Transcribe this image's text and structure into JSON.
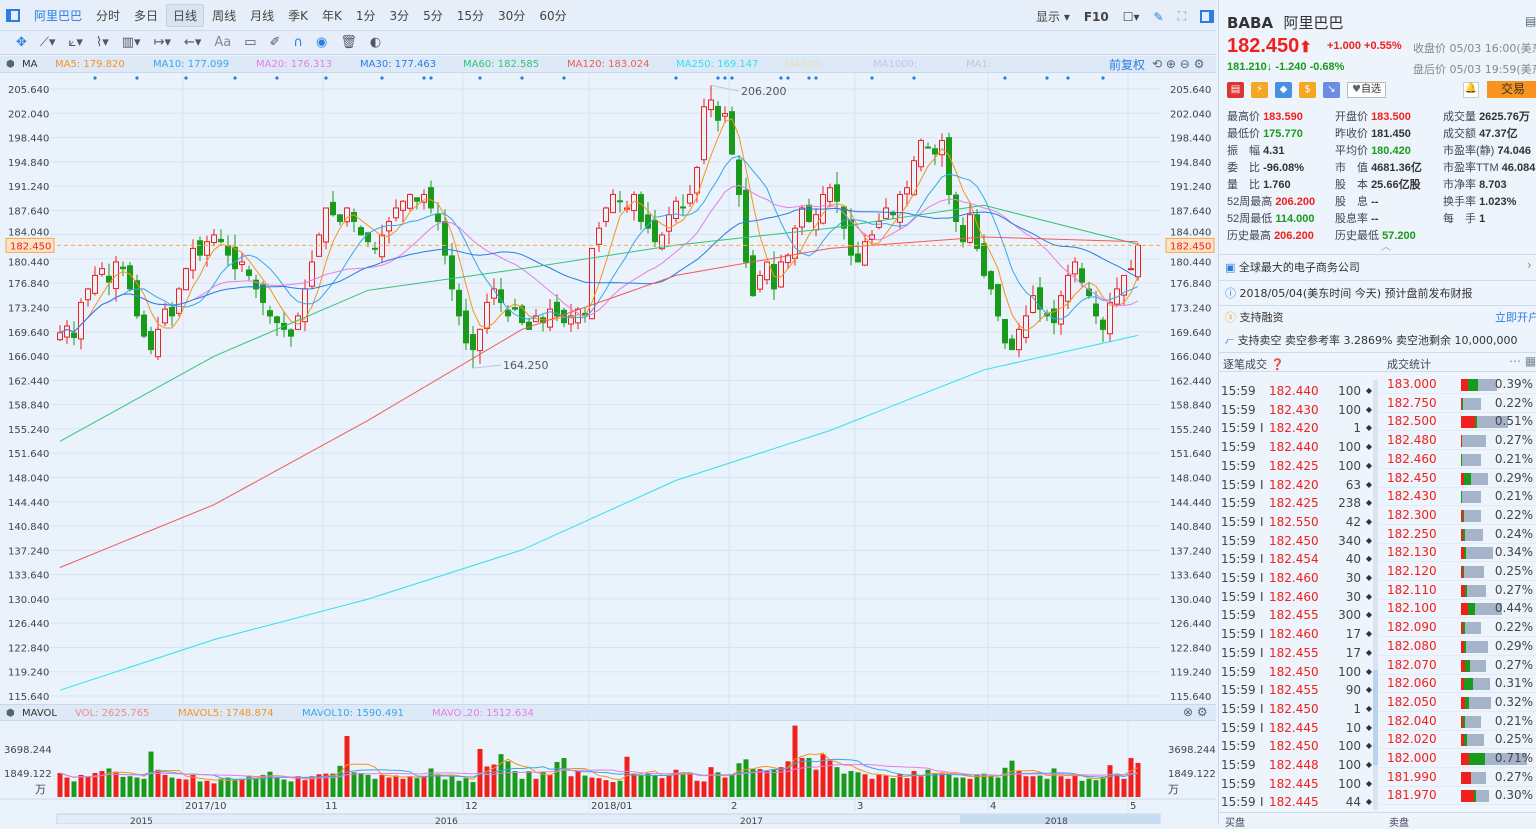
{
  "toolbar": {
    "tabs": [
      "阿里巴巴",
      "分时",
      "多日",
      "日线",
      "周线",
      "月线",
      "季K",
      "年K",
      "1分",
      "3分",
      "5分",
      "15分",
      "30分",
      "60分"
    ],
    "selected_tab": "日线",
    "display_label": "显示",
    "f10_label": "F10",
    "text_tool": "Aa"
  },
  "ma_legend": {
    "label": "MA",
    "items": [
      {
        "text": "MA5: 179.820",
        "color": "#f7931e"
      },
      {
        "text": "MA10: 177.099",
        "color": "#35a9e8"
      },
      {
        "text": "MA20: 176.313",
        "color": "#e77ee0"
      },
      {
        "text": "MA30: 177.463",
        "color": "#2a7de1"
      },
      {
        "text": "MA60: 182.585",
        "color": "#35c27a"
      },
      {
        "text": "MA120: 183.024",
        "color": "#f35a5a"
      },
      {
        "text": "MA250: 169.147",
        "color": "#2de3ee"
      },
      {
        "text": "MA500:",
        "color": "#e5e0b0"
      },
      {
        "text": "MA1000:",
        "color": "#c8c0ee"
      },
      {
        "text": "MA1:",
        "color": "#c0c8d4"
      }
    ],
    "adjust_label": "前复权"
  },
  "vol_legend": {
    "label": "MAVOL",
    "items": [
      {
        "text": "VOL: 2625.765",
        "color": "#f38a8a"
      },
      {
        "text": "MAVOL5: 1748.874",
        "color": "#f7931e"
      },
      {
        "text": "MAVOL10: 1590.491",
        "color": "#35a9e8"
      },
      {
        "text": "MAVOL20: 1512.634",
        "color": "#e77ee0"
      }
    ]
  },
  "chart_data": {
    "type": "candlestick",
    "y_ticks": [
      "205.640",
      "202.040",
      "198.440",
      "194.840",
      "191.240",
      "187.640",
      "184.040",
      "180.440",
      "176.840",
      "173.240",
      "169.640",
      "166.040",
      "162.440",
      "158.840",
      "155.240",
      "151.640",
      "148.040",
      "144.440",
      "140.840",
      "137.240",
      "133.640",
      "130.040",
      "126.440",
      "122.840",
      "119.240",
      "115.640"
    ],
    "ylim": [
      115.64,
      205.64
    ],
    "current_price": "182.450",
    "annotations": [
      {
        "text": "206.200",
        "value": 206.2,
        "index": 93
      },
      {
        "text": "164.250",
        "value": 164.25,
        "index": 59
      }
    ],
    "month_labels": [
      {
        "text": "2017/10",
        "index": 18
      },
      {
        "text": "11",
        "index": 38
      },
      {
        "text": "12",
        "index": 58
      },
      {
        "text": "2018/01",
        "index": 76
      },
      {
        "text": "2",
        "index": 96
      },
      {
        "text": "3",
        "index": 114
      },
      {
        "text": "4",
        "index": 133
      },
      {
        "text": "5",
        "index": 153
      }
    ],
    "navigator_years": [
      "2015",
      "2016",
      "2017",
      "2018"
    ],
    "vol_ticks": [
      "3698.244",
      "1849.122"
    ],
    "vol_unit": "万",
    "up_color": "#f0201c",
    "down_color": "#1a9a1a",
    "closes": [
      169.5,
      170.5,
      168.8,
      174,
      176,
      178,
      179,
      177,
      180,
      179,
      176,
      172,
      169,
      167,
      170,
      173,
      172,
      176,
      179,
      182,
      181,
      183,
      184,
      183,
      181,
      179,
      180,
      178,
      176,
      174,
      172,
      171,
      170,
      169,
      172,
      176,
      180,
      184,
      188,
      187,
      186,
      188,
      186,
      184,
      183,
      182,
      184,
      186,
      188,
      189,
      190,
      189,
      190,
      188,
      186,
      181,
      176,
      172,
      168,
      167,
      170,
      174,
      176,
      174,
      172,
      173,
      171,
      170,
      172,
      171,
      173,
      172,
      171,
      172,
      173,
      172,
      182,
      185,
      188,
      190,
      189,
      188,
      190,
      186,
      185,
      183,
      184,
      187,
      189,
      188,
      190,
      194,
      203,
      204,
      201,
      202,
      196,
      190,
      180,
      175,
      178,
      180,
      176,
      180,
      181,
      185,
      188,
      186,
      187,
      190,
      191,
      189,
      185,
      181,
      180,
      183,
      184,
      186,
      188,
      187,
      190,
      191,
      195,
      198,
      197,
      196,
      198,
      190,
      186,
      183,
      187,
      182,
      178,
      176,
      172,
      168,
      167,
      170,
      172,
      175,
      173,
      172,
      171,
      175,
      178,
      180,
      177,
      175,
      172,
      170,
      174,
      176,
      178,
      179,
      182.45
    ],
    "volumes": [
      1850,
      1500,
      1200,
      1700,
      1550,
      1850,
      2000,
      2200,
      1950,
      1550,
      1600,
      1500,
      1400,
      3500,
      2100,
      1700,
      1500,
      1400,
      1350,
      1700,
      1200,
      1250,
      1050,
      1400,
      1500,
      1350,
      1400,
      1650,
      1450,
      1700,
      1950,
      1500,
      1350,
      1200,
      1600,
      1300,
      1600,
      1750,
      1800,
      1800,
      2400,
      4700,
      1900,
      1850,
      1700,
      1400,
      1700,
      1500,
      1650,
      1400,
      1600,
      1450,
      1600,
      2200,
      1750,
      1350,
      1600,
      1250,
      1450,
      1150,
      3700,
      2350,
      2500,
      3300,
      2750,
      2000,
      1400,
      2000,
      1400,
      1950,
      1700,
      2700,
      3000,
      1600,
      2000,
      1650,
      1500,
      1450,
      1300,
      1150,
      1250,
      3100,
      1800,
      1650,
      1800,
      1650,
      1450,
      1700,
      2100,
      1900,
      1750,
      1250,
      1200,
      2300,
      1900,
      1500,
      1700,
      2600,
      2900,
      2150,
      2150,
      2000,
      2100,
      2300,
      2750,
      5500,
      3000,
      3000,
      2100,
      3300,
      2800,
      2300,
      1800,
      2000,
      1900,
      1750,
      1400,
      1700,
      1650,
      1450,
      1750,
      1450,
      2000,
      1600,
      2100,
      1850,
      1800,
      1700,
      1500,
      1500,
      1400,
      1750,
      1800,
      1600,
      1500,
      2250,
      2800,
      2000,
      1600,
      1600,
      1650,
      1400,
      2200,
      1600,
      1400,
      1700,
      1250,
      1400,
      1300,
      1500,
      2450,
      1800,
      1400,
      3000,
      2625.765
    ],
    "long_ma": [
      {
        "name": "MA60",
        "color": "#35c27a",
        "every": 22,
        "values": [
          153.4,
          166,
          175.8,
          179,
          182.5,
          185,
          188.4,
          182.6
        ]
      },
      {
        "name": "MA120",
        "color": "#f35a5a",
        "every": 22,
        "values": [
          134.7,
          144,
          156.5,
          170,
          178,
          182,
          183.7,
          183.0
        ]
      },
      {
        "name": "MA250",
        "color": "#2de3ee",
        "every": 22,
        "values": [
          116.5,
          124,
          130,
          137.3,
          147.6,
          155,
          164,
          169.1
        ]
      }
    ]
  },
  "quote": {
    "symbol": "BABA",
    "name": "阿里巴巴",
    "price": "182.450",
    "arrow": "⬆",
    "change": "+1.000",
    "change_pct": "+0.55%",
    "close_time": "收盘价 05/03 16:00(美东",
    "ah_price": "181.210",
    "ah_arrow": "↓",
    "ah_change": "-1.240",
    "ah_pct": "-0.68%",
    "ah_time": "盘后价 05/03 19:59(美东",
    "watch_label": "自选",
    "trade_label": "交易"
  },
  "stats": [
    [
      {
        "k": "最高价",
        "v": "183.590",
        "c": "red"
      },
      {
        "k": "开盘价",
        "v": "183.500",
        "c": "red"
      },
      {
        "k": "成交量",
        "v": "2625.76万",
        "c": ""
      }
    ],
    [
      {
        "k": "最低价",
        "v": "175.770",
        "c": "green"
      },
      {
        "k": "昨收价",
        "v": "181.450",
        "c": ""
      },
      {
        "k": "成交额",
        "v": "47.37亿",
        "c": ""
      }
    ],
    [
      {
        "k": "振　幅",
        "v": "4.31",
        "c": ""
      },
      {
        "k": "平均价",
        "v": "180.420",
        "c": "green"
      },
      {
        "k": "市盈率(静)",
        "v": "74.046",
        "c": ""
      }
    ],
    [
      {
        "k": "委　比",
        "v": "-96.08%",
        "c": ""
      },
      {
        "k": "市　值",
        "v": "4681.36亿",
        "c": ""
      },
      {
        "k": "市盈率TTM",
        "v": "46.084",
        "c": ""
      }
    ],
    [
      {
        "k": "量　比",
        "v": "1.760",
        "c": ""
      },
      {
        "k": "股　本",
        "v": "25.66亿股",
        "c": ""
      },
      {
        "k": "市净率",
        "v": "8.703",
        "c": ""
      }
    ],
    [
      {
        "k": "52周最高",
        "v": "206.200",
        "c": "red"
      },
      {
        "k": "股　息",
        "v": "--",
        "c": ""
      },
      {
        "k": "换手率",
        "v": "1.023%",
        "c": ""
      }
    ],
    [
      {
        "k": "52周最低",
        "v": "114.000",
        "c": "green"
      },
      {
        "k": "股息率",
        "v": "--",
        "c": ""
      },
      {
        "k": "每　手",
        "v": "1",
        "c": ""
      }
    ],
    [
      {
        "k": "历史最高",
        "v": "206.200",
        "c": "red"
      },
      {
        "k": "历史最低",
        "v": "57.200",
        "c": "green"
      }
    ]
  ],
  "info": {
    "company": "全球最大的电子商务公司",
    "earnings": "2018/05/04(美东时间 今天) 预计盘前发布财报",
    "margin": "支持融资",
    "open_account": "立即开户",
    "short": "支持卖空  卖空参考率 3.2869%  卖空池剩余 10,000,000"
  },
  "trades": {
    "title": "逐笔成交",
    "stats_title": "成交统计",
    "footer_left": "买盘",
    "footer_right": "卖盘",
    "rows": [
      [
        "15:59",
        "",
        "182.440",
        "100"
      ],
      [
        "15:59",
        "",
        "182.430",
        "100"
      ],
      [
        "15:59",
        "I",
        "182.420",
        "1"
      ],
      [
        "15:59",
        "",
        "182.440",
        "100"
      ],
      [
        "15:59",
        "",
        "182.425",
        "100"
      ],
      [
        "15:59",
        "I",
        "182.420",
        "63"
      ],
      [
        "15:59",
        "",
        "182.425",
        "238"
      ],
      [
        "15:59",
        "I",
        "182.550",
        "42"
      ],
      [
        "15:59",
        "",
        "182.450",
        "340"
      ],
      [
        "15:59",
        "I",
        "182.454",
        "40"
      ],
      [
        "15:59",
        "I",
        "182.460",
        "30"
      ],
      [
        "15:59",
        "I",
        "182.460",
        "30"
      ],
      [
        "15:59",
        "",
        "182.455",
        "300"
      ],
      [
        "15:59",
        "I",
        "182.460",
        "17"
      ],
      [
        "15:59",
        "I",
        "182.455",
        "17"
      ],
      [
        "15:59",
        "",
        "182.450",
        "100"
      ],
      [
        "15:59",
        "I",
        "182.455",
        "90"
      ],
      [
        "15:59",
        "I",
        "182.450",
        "1"
      ],
      [
        "15:59",
        "I",
        "182.445",
        "10"
      ],
      [
        "15:59",
        "",
        "182.450",
        "100"
      ],
      [
        "15:59",
        "",
        "182.448",
        "100"
      ],
      [
        "15:59",
        "",
        "182.445",
        "100"
      ],
      [
        "15:59",
        "I",
        "182.445",
        "44"
      ]
    ]
  },
  "volume_stats": [
    {
      "price": "183.000",
      "pct": "0.39%",
      "red": 0.18,
      "green": 0.3
    },
    {
      "price": "182.750",
      "pct": "0.22%",
      "red": 0.03,
      "green": 0.08
    },
    {
      "price": "182.500",
      "pct": "0.51%",
      "red": 0.3,
      "green": 0.04
    },
    {
      "price": "182.480",
      "pct": "0.27%",
      "red": 0.03,
      "green": 0
    },
    {
      "price": "182.460",
      "pct": "0.21%",
      "red": 0,
      "green": 0.04
    },
    {
      "price": "182.450",
      "pct": "0.29%",
      "red": 0.12,
      "green": 0.25
    },
    {
      "price": "182.430",
      "pct": "0.21%",
      "red": 0,
      "green": 0.05
    },
    {
      "price": "182.300",
      "pct": "0.22%",
      "red": 0.12,
      "green": 0.04
    },
    {
      "price": "182.250",
      "pct": "0.24%",
      "red": 0.1,
      "green": 0.1
    },
    {
      "price": "182.130",
      "pct": "0.34%",
      "red": 0.08,
      "green": 0.08
    },
    {
      "price": "182.120",
      "pct": "0.25%",
      "red": 0.08,
      "green": 0.06
    },
    {
      "price": "182.110",
      "pct": "0.27%",
      "red": 0.15,
      "green": 0.08
    },
    {
      "price": "182.100",
      "pct": "0.44%",
      "red": 0.18,
      "green": 0.17
    },
    {
      "price": "182.090",
      "pct": "0.22%",
      "red": 0.1,
      "green": 0.1
    },
    {
      "price": "182.080",
      "pct": "0.29%",
      "red": 0.1,
      "green": 0.1
    },
    {
      "price": "182.070",
      "pct": "0.27%",
      "red": 0.15,
      "green": 0.2
    },
    {
      "price": "182.060",
      "pct": "0.31%",
      "red": 0.12,
      "green": 0.28
    },
    {
      "price": "182.050",
      "pct": "0.32%",
      "red": 0.12,
      "green": 0.15
    },
    {
      "price": "182.040",
      "pct": "0.21%",
      "red": 0.1,
      "green": 0.1
    },
    {
      "price": "182.020",
      "pct": "0.25%",
      "red": 0.15,
      "green": 0.1
    },
    {
      "price": "182.000",
      "pct": "0.71%",
      "red": 0.12,
      "green": 0.25
    },
    {
      "price": "181.990",
      "pct": "0.27%",
      "red": 0.4,
      "green": 0
    },
    {
      "price": "181.970",
      "pct": "0.30%",
      "red": 0.45,
      "green": 0.1
    }
  ]
}
